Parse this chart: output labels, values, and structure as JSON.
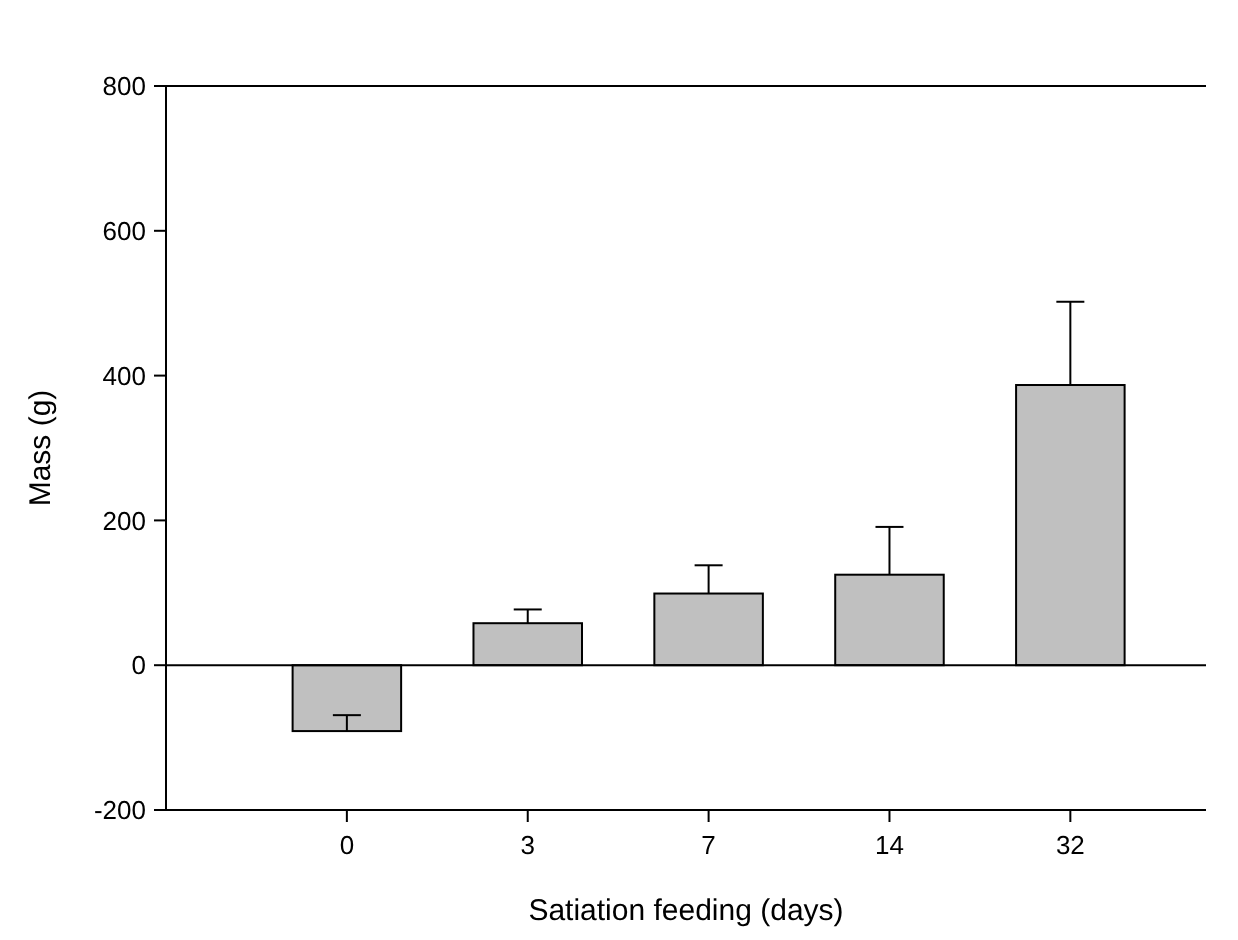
{
  "chart_data": {
    "type": "bar",
    "xlabel": "Satiation feeding (days)",
    "ylabel": "Mass (g)",
    "categories": [
      "0",
      "3",
      "7",
      "14",
      "32"
    ],
    "values": [
      -91,
      58,
      99,
      125,
      387
    ],
    "errors": [
      [
        -91,
        -69
      ],
      [
        58,
        77
      ],
      [
        99,
        138
      ],
      [
        125,
        191
      ],
      [
        387,
        502
      ]
    ],
    "color": "#c0c0c0",
    "ylim": [
      -200,
      800
    ],
    "yticks": [
      -200,
      0,
      200,
      400,
      600,
      800
    ],
    "ref_lines": [
      {
        "axis": "y",
        "value": 0,
        "color": "#000000"
      }
    ],
    "grid": false
  }
}
